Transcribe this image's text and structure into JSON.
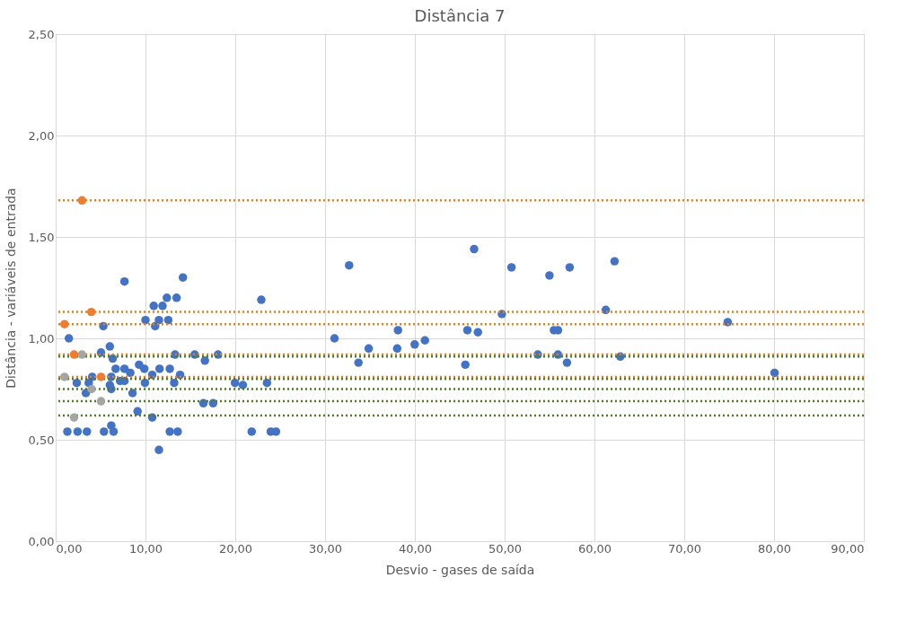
{
  "chart_data": {
    "type": "scatter",
    "title": "Distância 7",
    "xlabel": "Desvio - gases de saída",
    "ylabel": "Distância  - variáveis de entrada",
    "xlim": [
      0,
      90
    ],
    "ylim": [
      0,
      2.5
    ],
    "xticks": [
      {
        "value": 0,
        "label": "0,00"
      },
      {
        "value": 10,
        "label": "10,00"
      },
      {
        "value": 20,
        "label": "20,00"
      },
      {
        "value": 30,
        "label": "30,00"
      },
      {
        "value": 40,
        "label": "40,00"
      },
      {
        "value": 50,
        "label": "50,00"
      },
      {
        "value": 60,
        "label": "60,00"
      },
      {
        "value": 70,
        "label": "70,00"
      },
      {
        "value": 80,
        "label": "80,00"
      },
      {
        "value": 90,
        "label": "90,00"
      }
    ],
    "yticks": [
      {
        "value": 0,
        "label": "0,00"
      },
      {
        "value": 0.5,
        "label": "0,50"
      },
      {
        "value": 1,
        "label": "1,00"
      },
      {
        "value": 1.5,
        "label": "1,50"
      },
      {
        "value": 2,
        "label": "2,00"
      },
      {
        "value": 2.5,
        "label": "2,50"
      }
    ],
    "grid": true,
    "marker": "circle",
    "series": [
      {
        "color": "#4472c4",
        "x": [
          7.66,
          14.17,
          10.92,
          11.9,
          12.38,
          13.46,
          10.0,
          11.5,
          12.54,
          11.08,
          5.31,
          1.47,
          6.03,
          5.05,
          6.35,
          13.29,
          15.48,
          16.62,
          18.08,
          6.68,
          7.66,
          9.29,
          9.87,
          11.57,
          12.71,
          8.31,
          10.75,
          13.85,
          4.07,
          6.19,
          7.66,
          2.35,
          3.68,
          6.03,
          7.17,
          9.94,
          13.2,
          3.36,
          6.19,
          8.56,
          9.12,
          10.75,
          1.3,
          2.44,
          3.48,
          5.38,
          6.19,
          6.45,
          12.71,
          13.59,
          11.5,
          16.45,
          17.53,
          22.9,
          32.68,
          46.6,
          31.05,
          34.86,
          33.72,
          38.12,
          38.03,
          39.98,
          41.12,
          45.62,
          45.85,
          47.02,
          19.97,
          20.85,
          23.53,
          21.83,
          23.95,
          24.54,
          50.76,
          54.99,
          57.24,
          62.24,
          49.69,
          61.26,
          74.84,
          55.49,
          55.94,
          53.69,
          55.94,
          56.94,
          62.88,
          80.06
        ],
        "values": [
          1.28,
          1.3,
          1.16,
          1.16,
          1.2,
          1.2,
          1.09,
          1.09,
          1.09,
          1.06,
          1.06,
          1.0,
          0.96,
          0.93,
          0.9,
          0.92,
          0.92,
          0.89,
          0.92,
          0.85,
          0.85,
          0.87,
          0.85,
          0.85,
          0.85,
          0.83,
          0.82,
          0.82,
          0.81,
          0.81,
          0.79,
          0.78,
          0.78,
          0.77,
          0.79,
          0.78,
          0.78,
          0.73,
          0.75,
          0.73,
          0.64,
          0.61,
          0.54,
          0.54,
          0.54,
          0.54,
          0.57,
          0.54,
          0.54,
          0.54,
          0.45,
          0.68,
          0.68,
          1.19,
          1.36,
          1.44,
          1.0,
          0.95,
          0.88,
          1.04,
          0.95,
          0.97,
          0.99,
          0.87,
          1.04,
          1.03,
          0.78,
          0.77,
          0.78,
          0.54,
          0.54,
          0.54,
          1.35,
          1.31,
          1.35,
          1.38,
          1.12,
          1.14,
          1.08,
          1.04,
          1.04,
          0.92,
          0.92,
          0.88,
          0.91,
          0.83
        ]
      },
      {
        "color": "#ed7d31",
        "x": [
          2.93,
          3.97,
          0.98,
          2.05,
          5.05
        ],
        "values": [
          1.68,
          1.13,
          1.07,
          0.92,
          0.81
        ]
      },
      {
        "color": "#a5a5a5",
        "x": [
          2.93,
          0.98,
          4.0,
          5.05,
          2.05
        ],
        "values": [
          0.92,
          0.81,
          0.75,
          0.69,
          0.61
        ]
      }
    ],
    "ref_lines": [
      {
        "axis": "y",
        "value": 1.68,
        "color": "#d9822b",
        "line_style": "dotted"
      },
      {
        "axis": "y",
        "value": 1.13,
        "color": "#d9822b",
        "line_style": "dotted"
      },
      {
        "axis": "y",
        "value": 1.07,
        "color": "#d9822b",
        "line_style": "dotted"
      },
      {
        "axis": "y",
        "value": 0.92,
        "color": "#d9822b",
        "line_style": "dotted"
      },
      {
        "axis": "y",
        "value": 0.81,
        "color": "#d9822b",
        "line_style": "dotted"
      },
      {
        "axis": "y",
        "value": 0.91,
        "color": "#4f7a28",
        "line_style": "dotted"
      },
      {
        "axis": "y",
        "value": 0.8,
        "color": "#4f7a28",
        "line_style": "dotted"
      },
      {
        "axis": "y",
        "value": 0.75,
        "color": "#4f7a28",
        "line_style": "dotted"
      },
      {
        "axis": "y",
        "value": 0.69,
        "color": "#4f7a28",
        "line_style": "dotted"
      },
      {
        "axis": "y",
        "value": 0.62,
        "color": "#4f7a28",
        "line_style": "dotted"
      }
    ]
  }
}
